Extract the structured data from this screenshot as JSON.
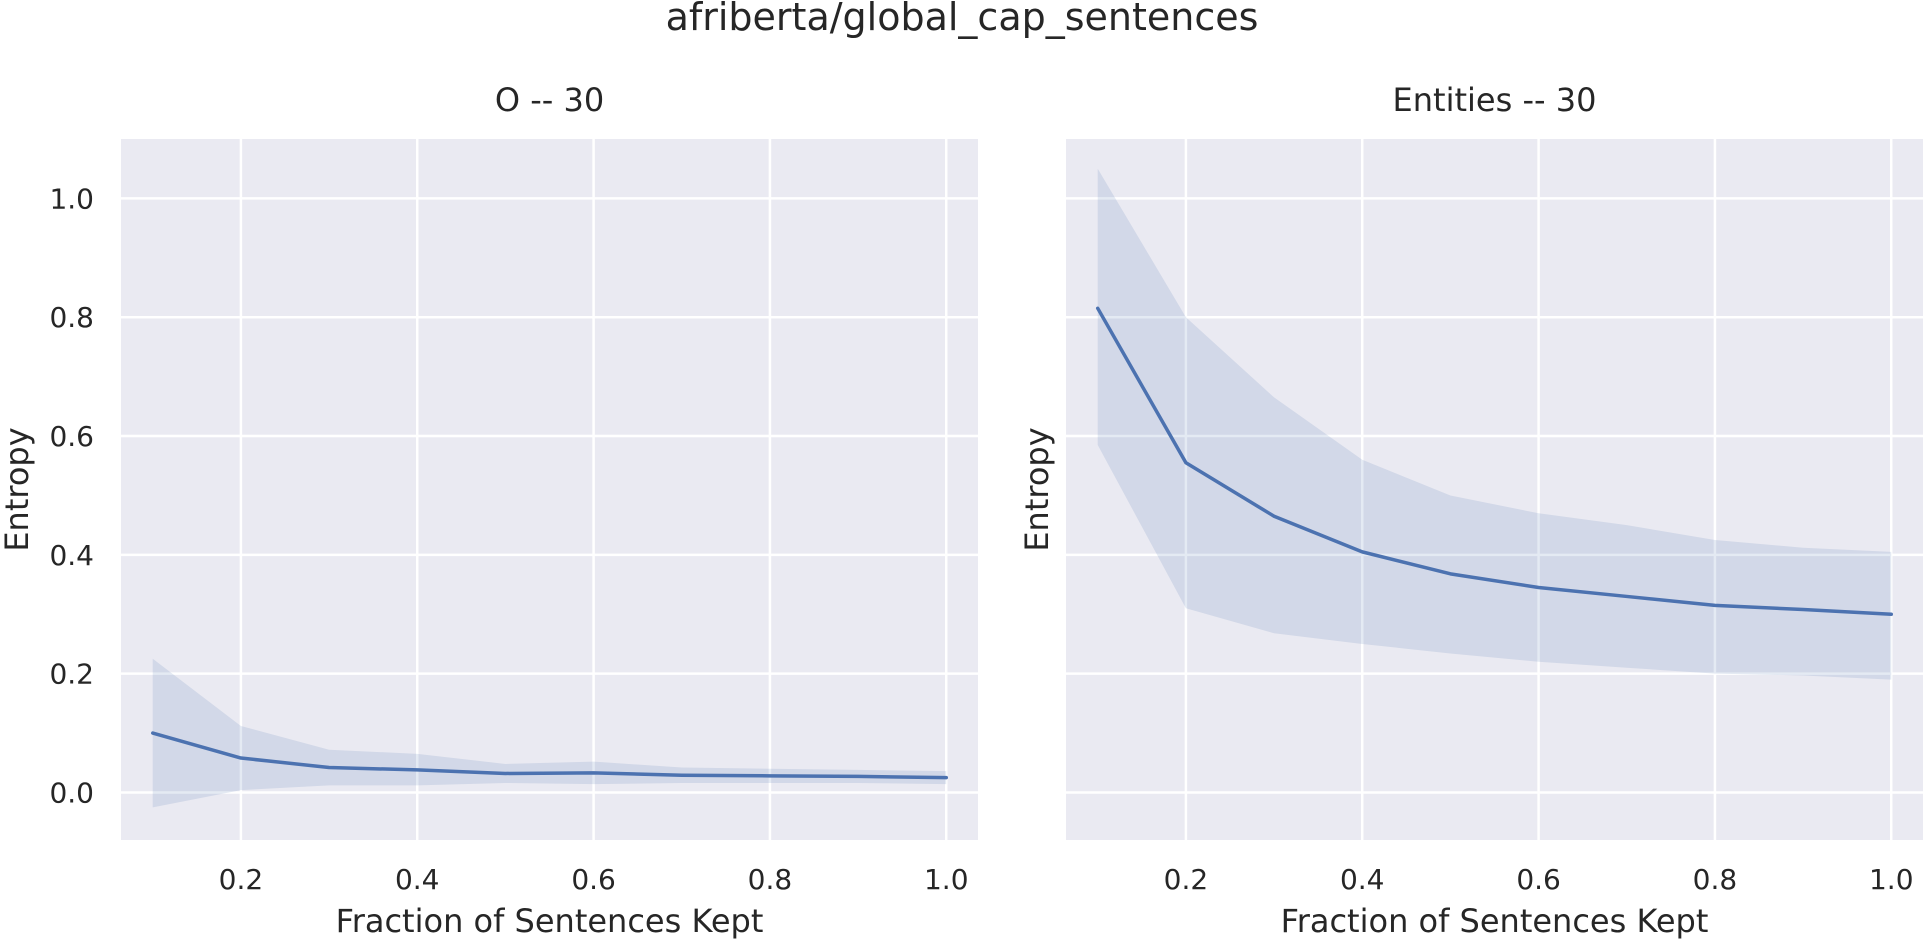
{
  "title": "afriberta/global_cap_sentences",
  "chart_data": [
    {
      "type": "line",
      "title": "O -- 30",
      "xlabel": "Fraction of Sentences Kept",
      "ylabel": "Entropy",
      "xlim": [
        0.064,
        1.036
      ],
      "ylim": [
        -0.08,
        1.1
      ],
      "xticks": [
        0.2,
        0.4,
        0.6,
        0.8,
        1.0
      ],
      "xtick_labels": [
        "0.2",
        "0.4",
        "0.6",
        "0.8",
        "1.0"
      ],
      "yticks": [
        0.0,
        0.2,
        0.4,
        0.6,
        0.8,
        1.0
      ],
      "ytick_labels": [
        "0.0",
        "0.2",
        "0.4",
        "0.6",
        "0.8",
        "1.0"
      ],
      "show_ytick_labels": true,
      "grid": true,
      "line_color": "#4c72b0",
      "x": [
        0.1,
        0.2,
        0.3,
        0.4,
        0.5,
        0.6,
        0.7,
        0.8,
        0.9,
        1.0
      ],
      "y": [
        0.1,
        0.058,
        0.042,
        0.038,
        0.032,
        0.033,
        0.029,
        0.028,
        0.027,
        0.025
      ],
      "ci_upper": [
        0.225,
        0.112,
        0.072,
        0.065,
        0.048,
        0.052,
        0.042,
        0.04,
        0.038,
        0.036
      ],
      "ci_lower": [
        -0.025,
        0.004,
        0.012,
        0.012,
        0.016,
        0.014,
        0.016,
        0.016,
        0.016,
        0.014
      ]
    },
    {
      "type": "line",
      "title": "Entities -- 30",
      "xlabel": "Fraction of Sentences Kept",
      "ylabel": "Entropy",
      "xlim": [
        0.064,
        1.036
      ],
      "ylim": [
        -0.08,
        1.1
      ],
      "xticks": [
        0.2,
        0.4,
        0.6,
        0.8,
        1.0
      ],
      "xtick_labels": [
        "0.2",
        "0.4",
        "0.6",
        "0.8",
        "1.0"
      ],
      "yticks": [
        0.0,
        0.2,
        0.4,
        0.6,
        0.8,
        1.0
      ],
      "ytick_labels": [],
      "show_ytick_labels": false,
      "grid": true,
      "line_color": "#4c72b0",
      "x": [
        0.1,
        0.2,
        0.3,
        0.4,
        0.5,
        0.6,
        0.7,
        0.8,
        0.9,
        1.0
      ],
      "y": [
        0.815,
        0.555,
        0.465,
        0.405,
        0.368,
        0.345,
        0.33,
        0.315,
        0.308,
        0.3
      ],
      "ci_upper": [
        1.05,
        0.8,
        0.665,
        0.56,
        0.5,
        0.47,
        0.45,
        0.425,
        0.412,
        0.405
      ],
      "ci_lower": [
        0.585,
        0.31,
        0.268,
        0.25,
        0.234,
        0.22,
        0.21,
        0.2,
        0.197,
        0.19
      ]
    }
  ]
}
